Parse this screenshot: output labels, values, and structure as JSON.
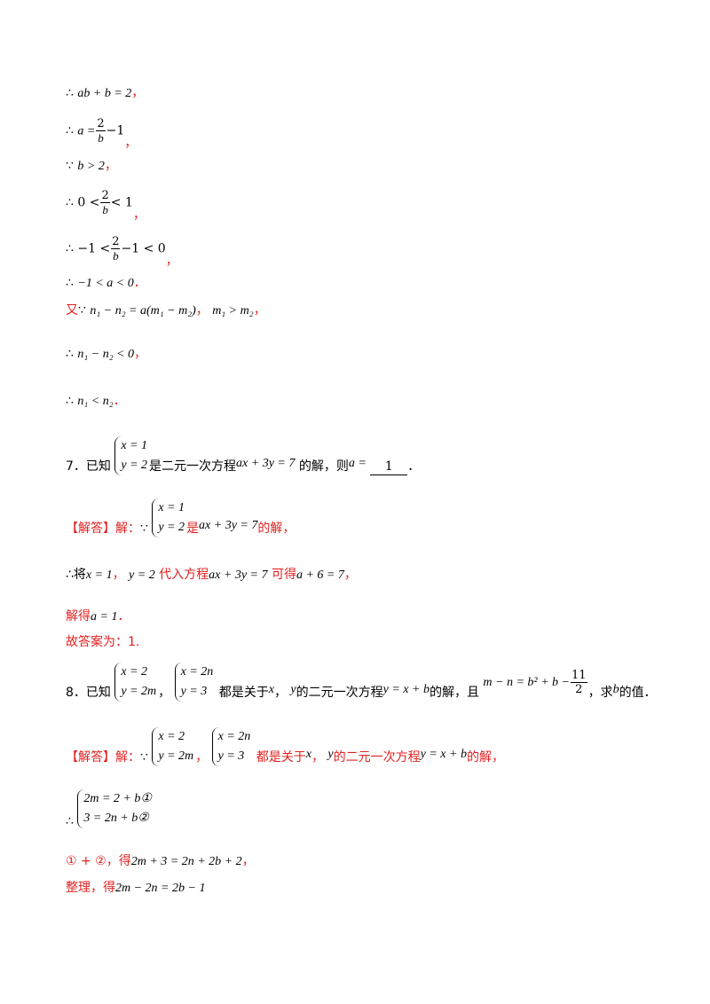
{
  "lines": {
    "l1": {
      "sym": "∴",
      "expr": "ab + b = 2",
      "tail": "，"
    },
    "l2": {
      "sym": "∴",
      "lhs": "a =",
      "num": "2",
      "den": "b",
      "rhs": "−1",
      "tail": "，"
    },
    "l3": {
      "sym": "∵",
      "expr": "b > 2",
      "tail": "，"
    },
    "l4": {
      "sym": "∴",
      "lhs": "0 <",
      "num": "2",
      "den": "b",
      "rhs": "< 1",
      "tail": "，"
    },
    "l5": {
      "sym": "∴",
      "lhs": "−1 <",
      "num": "2",
      "den": "b",
      "rhs": "−1 < 0",
      "tail": "，"
    },
    "l6": {
      "sym": "∴",
      "expr": "−1 < a < 0",
      "tail": "．"
    },
    "l7": {
      "lead": "又",
      "sym": "∵",
      "expr": "n₁ − n₂ = a(m₁ − m₂)",
      "sep": "，",
      "expr2": "m₁ > m₂",
      "tail": "，"
    },
    "l8": {
      "sym": "∴",
      "expr": "n₁ − n₂ < 0",
      "tail": "，"
    },
    "l9": {
      "sym": "∴",
      "expr": "n₁ < n₂",
      "tail": "．"
    }
  },
  "q7": {
    "number": "7．已知",
    "sys_top": "x = 1",
    "sys_bottom": "y = 2",
    "text1": "是二元一次方程",
    "eq": "ax + 3y = 7",
    "text2": "的解，则",
    "ask": "a =",
    "answer": "1",
    "end": "．"
  },
  "a7": {
    "tag": "【解答】解：",
    "because": "∵",
    "sys_top": "x = 1",
    "sys_bottom": "y = 2",
    "text1": "是",
    "eq": "ax + 3y = 7",
    "text2": "的解，",
    "l2_sym": "∴将",
    "l2_e1": "x = 1",
    "l2_sep": "，",
    "l2_e2": "y = 2",
    "l2_t1": "代入方程",
    "l2_eq": "ax + 3y = 7",
    "l2_t2": "可得",
    "l2_res": "a + 6 = 7",
    "l2_end": "，",
    "l3_t": "解得",
    "l3_e": "a = 1",
    "l3_end": "．",
    "l4": "故答案为：1."
  },
  "q8": {
    "number": "8．已知",
    "s1_top": "x = 2",
    "s1_bottom": "y = 2m",
    "sep": "，",
    "s2_top": "x = 2n",
    "s2_bottom": "y = 3",
    "text1": "都是关于",
    "v1": "x",
    "text2": "，",
    "v2": "y",
    "text3": "的二元一次方程",
    "eq": "y = x + b",
    "text4": "的解，且",
    "cond_lhs": "m − n = b² + b −",
    "cond_num": "11",
    "cond_den": "2",
    "text5": "，求",
    "v3": "b",
    "text6": "的值．"
  },
  "a8": {
    "tag": "【解答】解：",
    "because": "∵",
    "s1_top": "x = 2",
    "s1_bottom": "y = 2m",
    "sep": "，",
    "s2_top": "x = 2n",
    "s2_bottom": "y = 3",
    "text1": "都是关于",
    "v1": "x",
    "text2": "，",
    "v2": "y",
    "text3": "的二元一次方程",
    "eq": "y = x + b",
    "text4": "的解，",
    "sym": "∴",
    "sys_top": "2m = 2 + b①",
    "sys_bottom": "3 = 2n + b②",
    "l3_lead": "① + ②，得",
    "l3_eq": "2m + 3 = 2n + 2b + 2",
    "l3_end": "，",
    "l4_lead": "整理，得",
    "l4_eq": "2m − 2n = 2b − 1"
  }
}
